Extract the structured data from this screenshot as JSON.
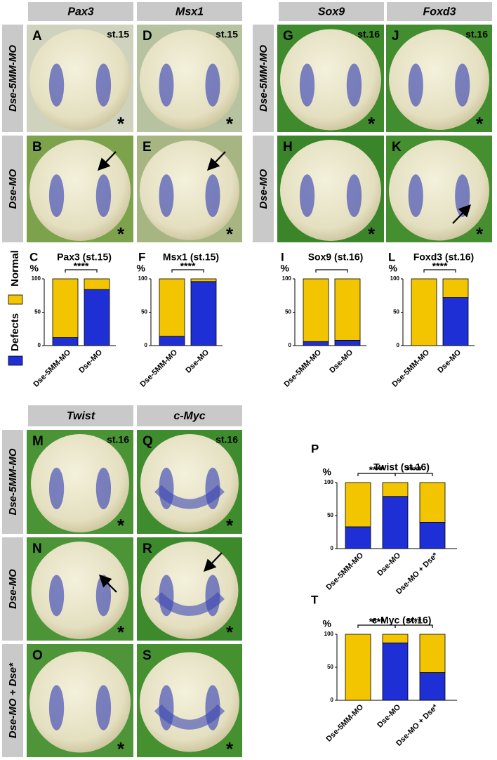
{
  "column_headers_top": [
    "Pax3",
    "Msx1",
    "Sox9",
    "Foxd3"
  ],
  "column_headers_bottom": [
    "Twist",
    "c-Myc"
  ],
  "row_labels_top": [
    "Dse-5MM-MO",
    "Dse-MO"
  ],
  "row_labels_bottom": [
    "Dse-5MM-MO",
    "Dse-MO",
    "Dse-MO + Dse*"
  ],
  "panels": [
    {
      "letter": "A",
      "stage": "st.15",
      "mark": "*"
    },
    {
      "letter": "D",
      "stage": "st.15",
      "mark": "*"
    },
    {
      "letter": "B",
      "mark": "*"
    },
    {
      "letter": "E",
      "mark": "*"
    },
    {
      "letter": "G",
      "stage": "st.16",
      "mark": "*"
    },
    {
      "letter": "J",
      "stage": "st.16",
      "mark": "*"
    },
    {
      "letter": "H",
      "mark": "*"
    },
    {
      "letter": "K",
      "mark": "*"
    },
    {
      "letter": "M",
      "stage": "st.16",
      "mark": "*"
    },
    {
      "letter": "Q",
      "stage": "st.16",
      "mark": "*"
    },
    {
      "letter": "N",
      "mark": "*"
    },
    {
      "letter": "R",
      "mark": "*"
    },
    {
      "letter": "O",
      "mark": "*"
    },
    {
      "letter": "S",
      "mark": "*"
    }
  ],
  "legend": [
    {
      "name": "Defects",
      "color": "#1f2fd6"
    },
    {
      "name": "Normal",
      "color": "#f2c500"
    }
  ],
  "chart_data": [
    {
      "type": "bar",
      "letter": "C",
      "title": "Pax3 (st.15)",
      "ylabel": "%",
      "categories": [
        "Dse-5MM-MO",
        "Dse-MO"
      ],
      "series": [
        {
          "values": [
            12,
            84
          ]
        },
        {
          "values": [
            88,
            16
          ]
        }
      ],
      "ylim": [
        0,
        100
      ],
      "yticks": [
        0,
        50,
        100
      ],
      "significance": [
        "****"
      ]
    },
    {
      "type": "bar",
      "letter": "F",
      "title": "Msx1 (st.15)",
      "ylabel": "%",
      "categories": [
        "Dse-5MM-MO",
        "Dse-MO"
      ],
      "series": [
        {
          "values": [
            14,
            96
          ]
        },
        {
          "values": [
            86,
            4
          ]
        }
      ],
      "ylim": [
        0,
        100
      ],
      "yticks": [
        0,
        50,
        100
      ],
      "significance": [
        "****"
      ]
    },
    {
      "type": "bar",
      "letter": "I",
      "title": "Sox9 (st.16)",
      "ylabel": "%",
      "categories": [
        "Dse-5MM-MO",
        "Dse-MO"
      ],
      "series": [
        {
          "values": [
            6,
            8
          ]
        },
        {
          "values": [
            94,
            92
          ]
        }
      ],
      "ylim": [
        0,
        100
      ],
      "yticks": [
        0,
        50,
        100
      ],
      "significance": [
        null
      ]
    },
    {
      "type": "bar",
      "letter": "L",
      "title": "Foxd3 (st.16)",
      "ylabel": "%",
      "categories": [
        "Dse-5MM-MO",
        "Dse-MO"
      ],
      "series": [
        {
          "values": [
            0,
            72
          ]
        },
        {
          "values": [
            100,
            28
          ]
        }
      ],
      "ylim": [
        0,
        100
      ],
      "yticks": [
        0,
        50,
        100
      ],
      "significance": [
        "****"
      ]
    },
    {
      "type": "bar",
      "letter": "P",
      "title": "Twist (st.16)",
      "ylabel": "%",
      "categories": [
        "Dse-5MM-MO",
        "Dse-MO",
        "Dse-MO + Dse*"
      ],
      "series": [
        {
          "values": [
            33,
            79,
            40
          ]
        },
        {
          "values": [
            67,
            21,
            60
          ]
        }
      ],
      "ylim": [
        0,
        100
      ],
      "yticks": [
        0,
        50,
        100
      ],
      "significance": [
        "****",
        "****"
      ]
    },
    {
      "type": "bar",
      "letter": "T",
      "title": "c-Myc (st.16)",
      "ylabel": "%",
      "categories": [
        "Dse-5MM-MO",
        "Dse-MO",
        "Dse-MO + Dse*"
      ],
      "series": [
        {
          "values": [
            0,
            87,
            42
          ]
        },
        {
          "values": [
            100,
            13,
            58
          ]
        }
      ],
      "ylim": [
        0,
        100
      ],
      "yticks": [
        0,
        50,
        100
      ],
      "significance": [
        "****",
        "****"
      ]
    }
  ]
}
